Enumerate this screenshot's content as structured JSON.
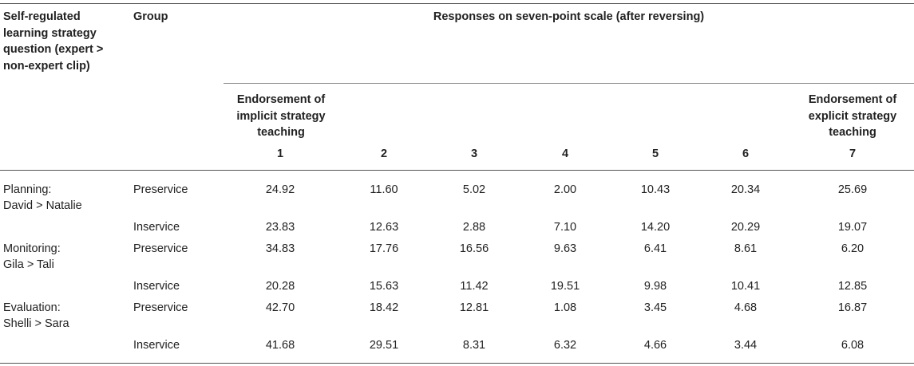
{
  "table": {
    "headers": {
      "question": "Self-regulated learning strategy question (expert > non-expert clip)",
      "group": "Group",
      "responses": "Responses on seven-point scale (after reversing)",
      "low_anchor": "Endorsement of implicit strategy teaching",
      "high_anchor": "Endorsement of explicit strategy teaching",
      "scale_points": [
        "1",
        "2",
        "3",
        "4",
        "5",
        "6",
        "7"
      ]
    },
    "rows": [
      {
        "question_line1": "Planning:",
        "question_line2": "David > Natalie",
        "group": "Preservice",
        "values": [
          "24.92",
          "11.60",
          "5.02",
          "2.00",
          "10.43",
          "20.34",
          "25.69"
        ]
      },
      {
        "question_line1": "",
        "question_line2": "",
        "group": "Inservice",
        "values": [
          "23.83",
          "12.63",
          "2.88",
          "7.10",
          "14.20",
          "20.29",
          "19.07"
        ]
      },
      {
        "question_line1": "Monitoring:",
        "question_line2": "Gila > Tali",
        "group": "Preservice",
        "values": [
          "34.83",
          "17.76",
          "16.56",
          "9.63",
          "6.41",
          "8.61",
          "6.20"
        ]
      },
      {
        "question_line1": "",
        "question_line2": "",
        "group": "Inservice",
        "values": [
          "20.28",
          "15.63",
          "11.42",
          "19.51",
          "9.98",
          "10.41",
          "12.85"
        ]
      },
      {
        "question_line1": "Evaluation:",
        "question_line2": "Shelli > Sara",
        "group": "Preservice",
        "values": [
          "42.70",
          "18.42",
          "12.81",
          "1.08",
          "3.45",
          "4.68",
          "16.87"
        ]
      },
      {
        "question_line1": "",
        "question_line2": "",
        "group": "Inservice",
        "values": [
          "41.68",
          "29.51",
          "8.31",
          "6.32",
          "4.66",
          "3.44",
          "6.08"
        ]
      }
    ]
  }
}
